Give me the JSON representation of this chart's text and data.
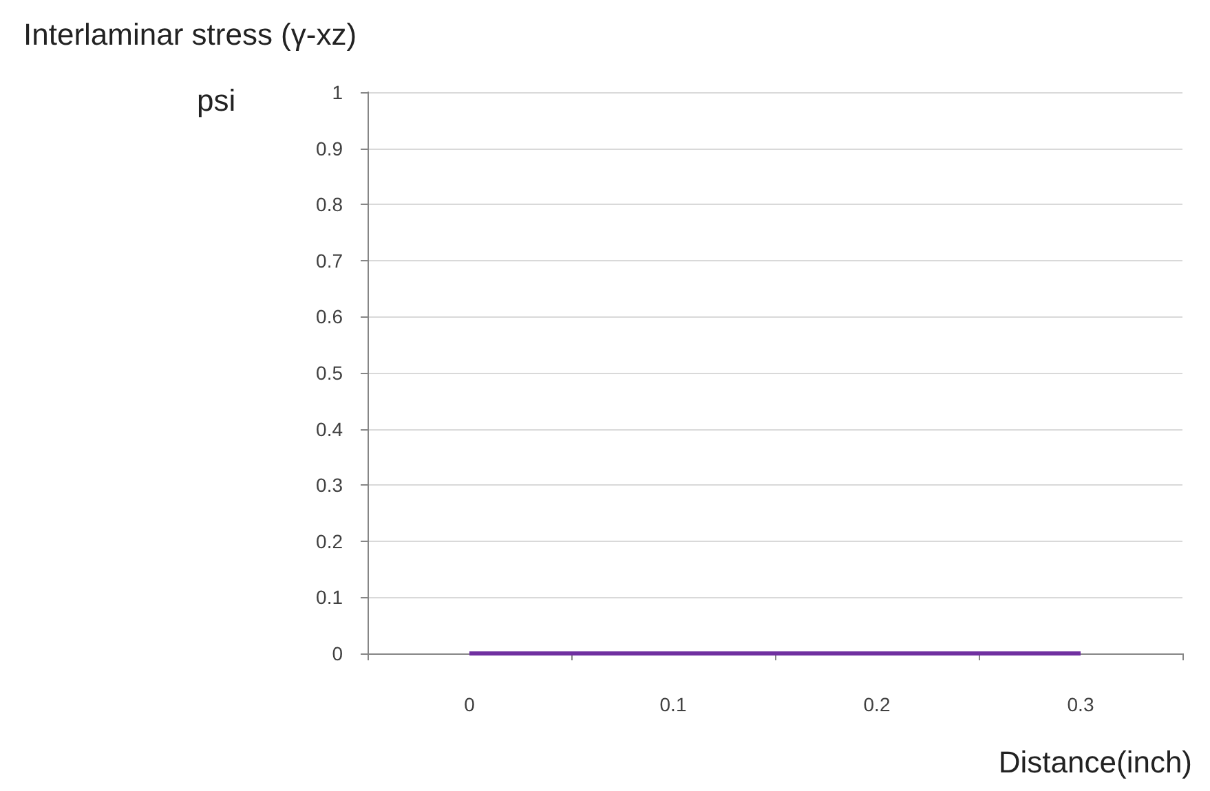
{
  "chart_data": {
    "type": "line",
    "title": "Interlaminar stress (γ-xz)",
    "xlabel": "Distance(inch)",
    "ylabel": "psi",
    "categories": [
      "0",
      "0.1",
      "0.2",
      "0.3"
    ],
    "series": [
      {
        "color": "#7030a0",
        "values": [
          0,
          0,
          0,
          0
        ]
      }
    ],
    "ylim": [
      0,
      1
    ],
    "yticks": [
      0,
      0.1,
      0.2,
      0.3,
      0.4,
      0.5,
      0.6,
      0.7,
      0.8,
      0.9,
      1
    ],
    "grid": "y",
    "marker": "none",
    "line_style": "solid"
  }
}
